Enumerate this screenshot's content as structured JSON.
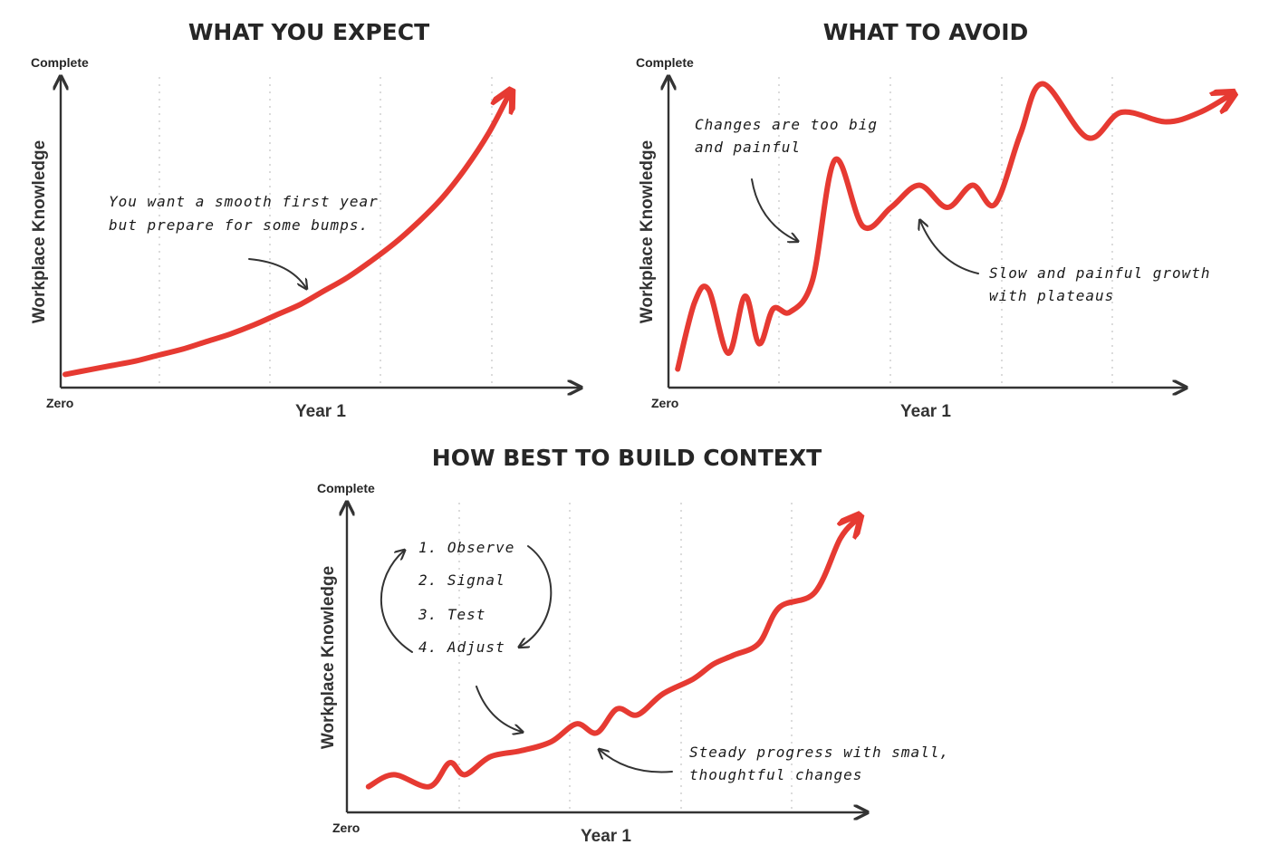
{
  "chart_data": [
    {
      "type": "line",
      "title": "WHAT YOU EXPECT",
      "ylabel": "Workplace Knowledge",
      "xlabel": "Year 1",
      "y_top_label": "Complete",
      "origin_label": "Zero",
      "annotations": [
        {
          "lines": [
            "You want a smooth first year",
            "but prepare for some bumps."
          ]
        }
      ],
      "series": [
        {
          "values": [
            [
              0.0,
              0.02
            ],
            [
              0.05,
              0.035
            ],
            [
              0.1,
              0.05
            ],
            [
              0.15,
              0.065
            ],
            [
              0.2,
              0.085
            ],
            [
              0.25,
              0.105
            ],
            [
              0.3,
              0.13
            ],
            [
              0.35,
              0.155
            ],
            [
              0.4,
              0.185
            ],
            [
              0.45,
              0.22
            ],
            [
              0.5,
              0.255
            ],
            [
              0.55,
              0.3
            ],
            [
              0.6,
              0.345
            ],
            [
              0.65,
              0.4
            ],
            [
              0.7,
              0.46
            ],
            [
              0.75,
              0.53
            ],
            [
              0.8,
              0.61
            ],
            [
              0.85,
              0.71
            ],
            [
              0.9,
              0.83
            ],
            [
              0.94,
              0.95
            ]
          ]
        }
      ]
    },
    {
      "type": "line",
      "title": "WHAT TO AVOID",
      "ylabel": "Workplace Knowledge",
      "xlabel": "Year 1",
      "y_top_label": "Complete",
      "origin_label": "Zero",
      "annotations": [
        {
          "lines": [
            "Changes are too big",
            "and painful"
          ]
        },
        {
          "lines": [
            "Slow and painful growth",
            "with plateaus"
          ]
        }
      ],
      "series": [
        {
          "values": [
            [
              0.01,
              0.05
            ],
            [
              0.04,
              0.26
            ],
            [
              0.065,
              0.3
            ],
            [
              0.1,
              0.1
            ],
            [
              0.13,
              0.28
            ],
            [
              0.155,
              0.13
            ],
            [
              0.18,
              0.24
            ],
            [
              0.21,
              0.23
            ],
            [
              0.25,
              0.33
            ],
            [
              0.29,
              0.71
            ],
            [
              0.34,
              0.5
            ],
            [
              0.39,
              0.56
            ],
            [
              0.44,
              0.63
            ],
            [
              0.49,
              0.56
            ],
            [
              0.535,
              0.63
            ],
            [
              0.575,
              0.57
            ],
            [
              0.62,
              0.79
            ],
            [
              0.66,
              0.95
            ],
            [
              0.74,
              0.78
            ],
            [
              0.8,
              0.86
            ],
            [
              0.88,
              0.83
            ],
            [
              0.94,
              0.86
            ],
            [
              0.99,
              0.91
            ]
          ]
        }
      ]
    },
    {
      "type": "line",
      "title": "HOW BEST TO BUILD CONTEXT",
      "ylabel": "Workplace Knowledge",
      "xlabel": "Year 1",
      "y_top_label": "Complete",
      "origin_label": "Zero",
      "annotations": [
        {
          "lines": [
            "1. Observe",
            "2. Signal",
            "3. Test",
            "4. Adjust"
          ]
        },
        {
          "lines": [
            "Steady progress with small,",
            "thoughtful changes"
          ]
        }
      ],
      "series": [
        {
          "values": [
            [
              0.03,
              0.08
            ],
            [
              0.08,
              0.12
            ],
            [
              0.15,
              0.08
            ],
            [
              0.19,
              0.16
            ],
            [
              0.22,
              0.12
            ],
            [
              0.27,
              0.18
            ],
            [
              0.33,
              0.2
            ],
            [
              0.39,
              0.23
            ],
            [
              0.44,
              0.29
            ],
            [
              0.48,
              0.26
            ],
            [
              0.52,
              0.34
            ],
            [
              0.56,
              0.32
            ],
            [
              0.61,
              0.39
            ],
            [
              0.67,
              0.44
            ],
            [
              0.71,
              0.49
            ],
            [
              0.75,
              0.52
            ],
            [
              0.8,
              0.56
            ],
            [
              0.84,
              0.68
            ],
            [
              0.91,
              0.73
            ],
            [
              0.96,
              0.91
            ],
            [
              0.99,
              0.97
            ]
          ]
        }
      ]
    }
  ]
}
